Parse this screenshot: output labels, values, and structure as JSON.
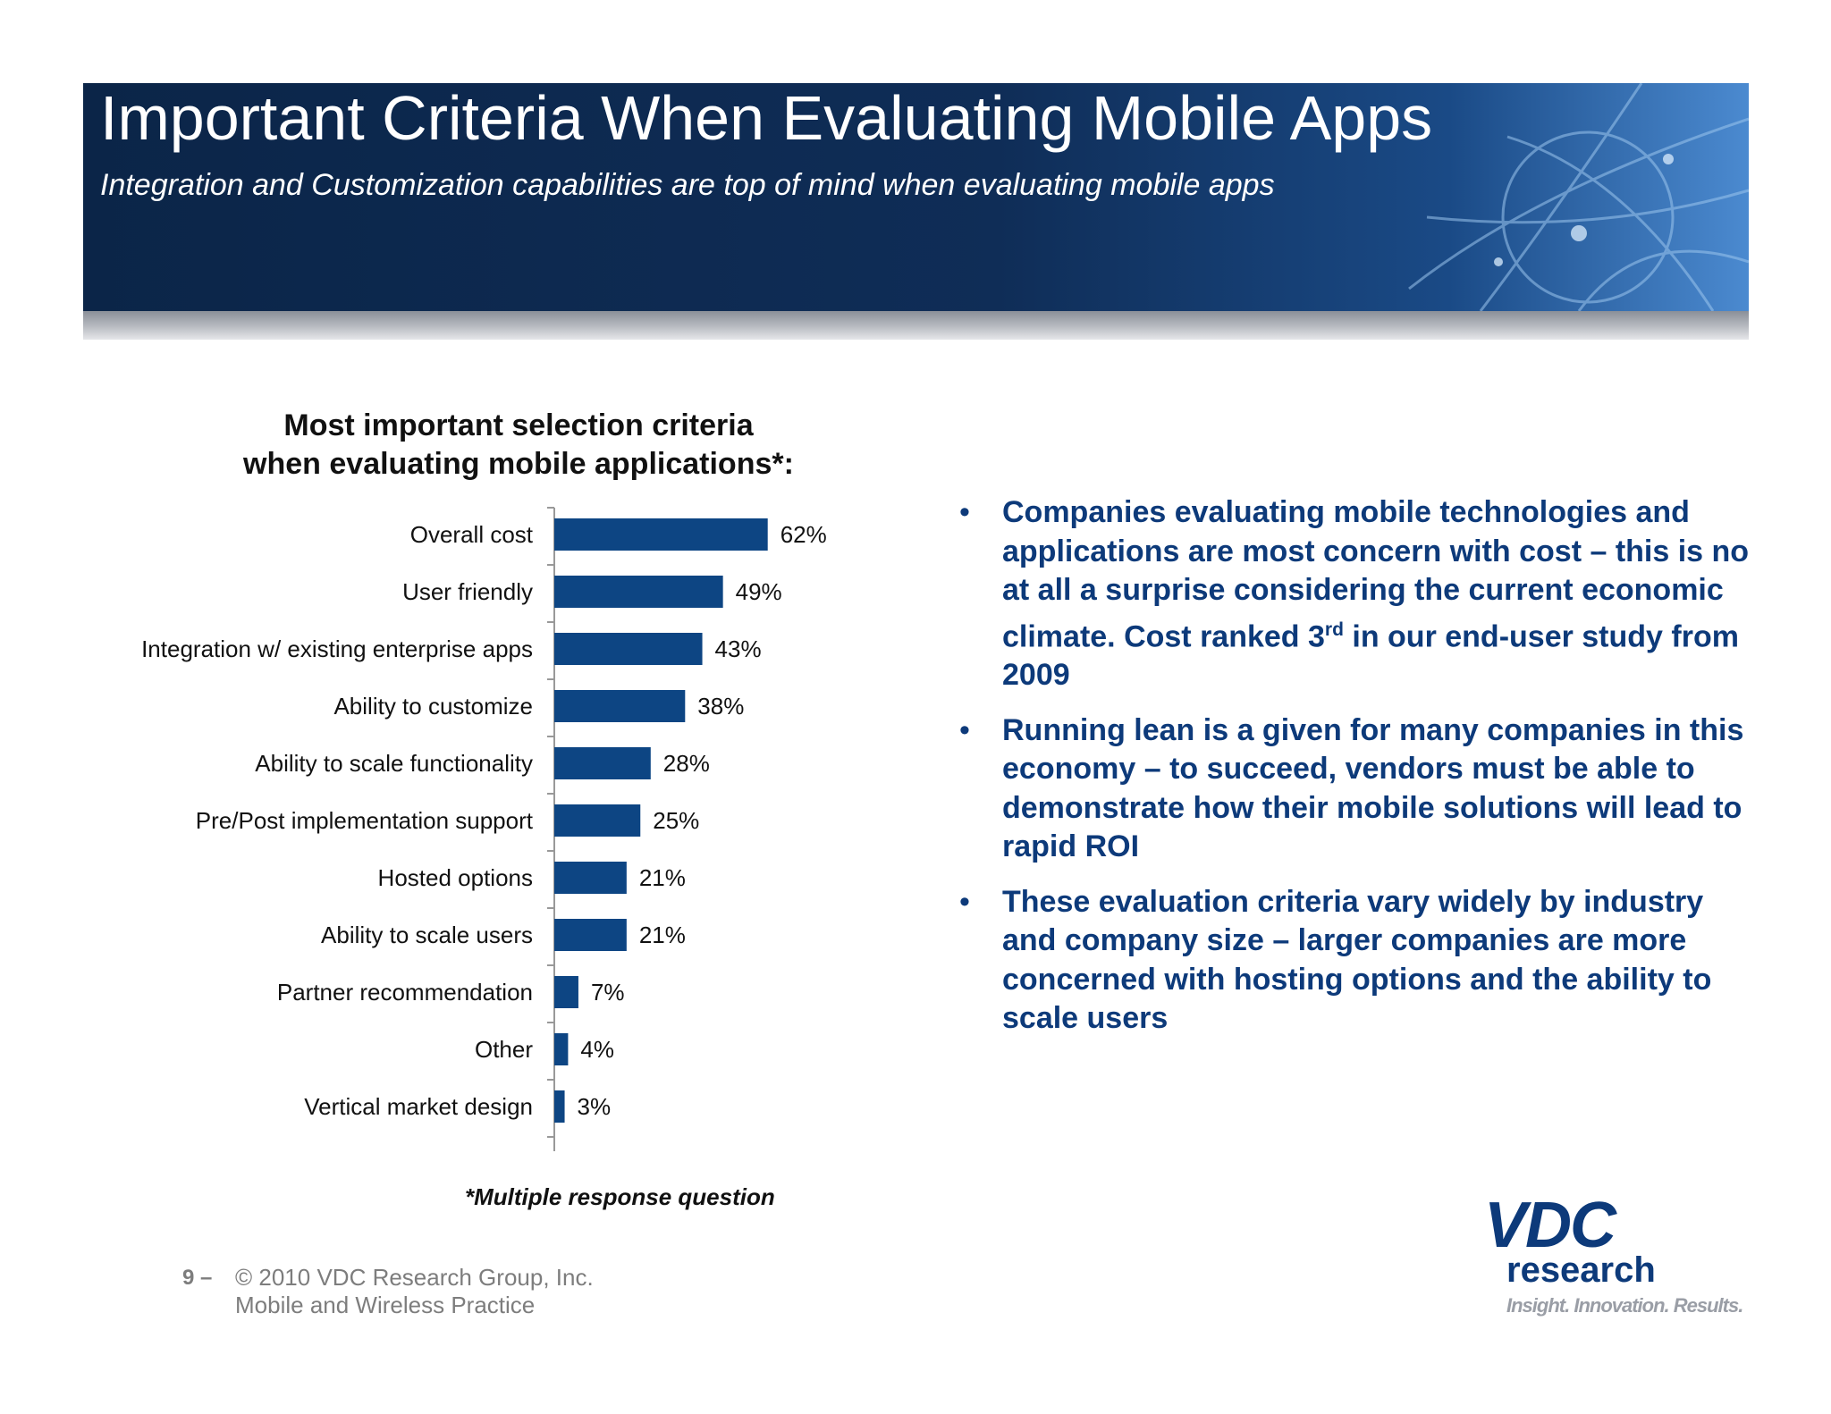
{
  "header": {
    "title": "Important Criteria When Evaluating Mobile Apps",
    "subtitle": "Integration and Customization capabilities are top of mind when evaluating mobile apps"
  },
  "chart_heading": {
    "line1": "Most important selection criteria",
    "line2": "when evaluating mobile applications*:"
  },
  "chart_data": {
    "type": "bar",
    "orientation": "horizontal",
    "categories": [
      "Overall cost",
      "User friendly",
      "Integration w/ existing enterprise apps",
      "Ability to customize",
      "Ability to scale functionality",
      "Pre/Post implementation support",
      "Hosted options",
      "Ability to scale users",
      "Partner recommendation",
      "Other",
      "Vertical market design"
    ],
    "values": [
      62,
      49,
      43,
      38,
      28,
      25,
      21,
      21,
      7,
      4,
      3
    ],
    "labels": [
      "62%",
      "49%",
      "43%",
      "38%",
      "28%",
      "25%",
      "21%",
      "21%",
      "7%",
      "4%",
      "3%"
    ],
    "title": "Most important selection criteria when evaluating mobile applications*:",
    "unit": "%",
    "bar_color": "#0d4583",
    "grid": false,
    "legend": "none"
  },
  "footnote": "*Multiple response question",
  "bullets": [
    {
      "before": "Companies evaluating mobile technologies and applications are most concern with cost – this is no at all a surprise considering the current economic climate.  Cost ranked 3",
      "sup": "rd",
      "after": " in our end-user study from 2009"
    },
    {
      "before": "Running lean is a given for many companies in this economy – to succeed, vendors must be able to demonstrate how their mobile solutions will lead to rapid ROI"
    },
    {
      "before": "These evaluation criteria vary widely by industry and company size – larger companies are more concerned with hosting options and the ability to scale users"
    }
  ],
  "bullet_marker": "•",
  "footer": {
    "page_number": "9 –",
    "copyright": "© 2010 VDC Research Group, Inc.",
    "practice": "Mobile and Wireless Practice"
  },
  "logo": {
    "mark": "VDC",
    "word": "research",
    "tagline": "Insight. Innovation. Results."
  },
  "colors": {
    "banner": "#0f2d57",
    "accent_text": "#0d3a7a",
    "bar": "#0d4583"
  }
}
